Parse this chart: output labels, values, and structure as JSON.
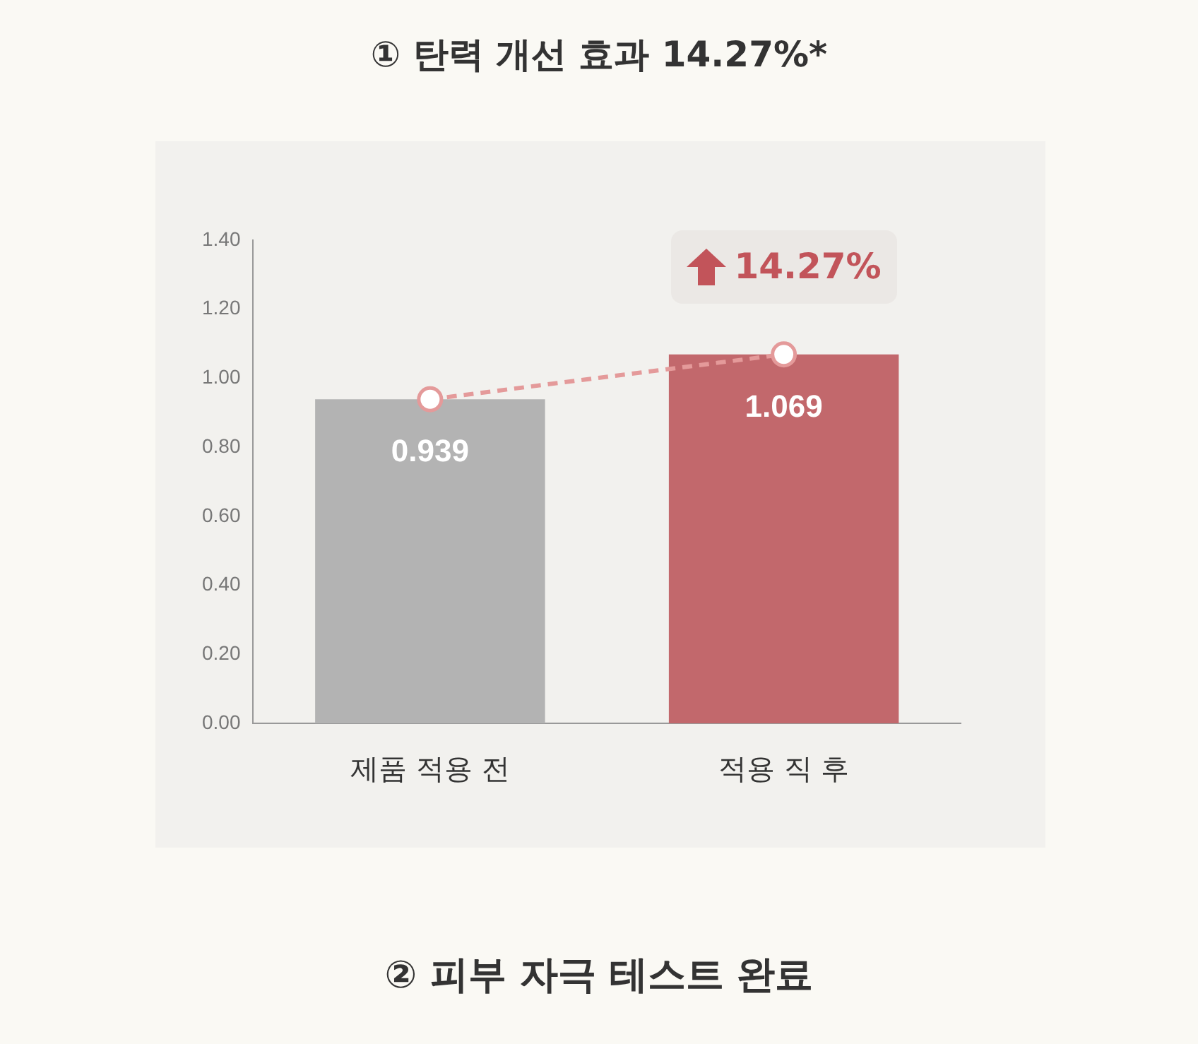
{
  "chart_data": {
    "type": "bar",
    "title": "① 탄력 개선 효과 14.27%*",
    "categories": [
      "제품 적용 전",
      "적용 직 후"
    ],
    "series": [
      {
        "colors": [
          "#b3b3b3",
          "#c2686c"
        ],
        "values": [
          0.939,
          1.069
        ],
        "value_labels": [
          "0.939",
          "1.069"
        ]
      },
      {
        "type": "line",
        "color": "#e49a9a",
        "values": [
          0.939,
          1.069
        ],
        "marker": "circle",
        "line_style": "dashed"
      }
    ],
    "ylim": [
      0,
      1.4
    ],
    "yticks": [
      {
        "value": 0,
        "label": "0.00"
      },
      {
        "value": 0.2,
        "label": "0.20"
      },
      {
        "value": 0.4,
        "label": "0.40"
      },
      {
        "value": 0.6,
        "label": "0.60"
      },
      {
        "value": 0.8,
        "label": "0.80"
      },
      {
        "value": 1,
        "label": "1.00"
      },
      {
        "value": 1.2,
        "label": "1.20"
      },
      {
        "value": 1.4,
        "label": "1.40"
      }
    ],
    "grid": false,
    "legend": false,
    "annotations": [
      {
        "text": "14.27%",
        "x": "적용 직 후",
        "y": 1.069
      },
      "② 피부 자극 테스트 완료"
    ]
  }
}
